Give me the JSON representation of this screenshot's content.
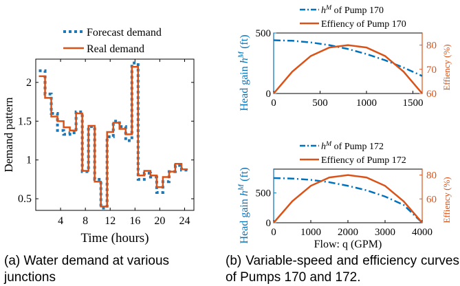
{
  "captions": {
    "a": "(a) Water demand at various junctions",
    "b": "(b) Variable-speed and efficiency curves of Pumps 170 and 172."
  },
  "colors": {
    "forecast": "#1f77b4",
    "real": "#d95319",
    "head": "#0072bd",
    "eff": "#d95319"
  },
  "chart_data": [
    {
      "type": "line",
      "xlabel": "Time (hours)",
      "ylabel": "Demand pattern",
      "xlim": [
        0,
        25.5
      ],
      "ylim": [
        0.35,
        2.3
      ],
      "xticks": [
        4,
        8,
        12,
        16,
        20,
        24
      ],
      "yticks": [
        0.5,
        1,
        1.5,
        2
      ],
      "legend_position": "top",
      "step": true,
      "series": [
        {
          "name": "Forecast demand",
          "style": "dotted-step",
          "color": "#1f77b4",
          "x": [
            1,
            2,
            3,
            4,
            5,
            6,
            7,
            8,
            9,
            10,
            11,
            12,
            13,
            14,
            15,
            16,
            17,
            18,
            19,
            20,
            21,
            22,
            23,
            24
          ],
          "values": [
            2.15,
            1.85,
            1.6,
            1.38,
            1.33,
            1.35,
            1.62,
            0.85,
            1.43,
            0.75,
            0.38,
            1.3,
            1.5,
            1.43,
            1.25,
            2.25,
            0.75,
            0.83,
            0.78,
            0.58,
            0.72,
            0.85,
            0.93,
            0.87
          ]
        },
        {
          "name": "Real demand",
          "style": "solid-step",
          "color": "#d95319",
          "x": [
            1,
            2,
            3,
            4,
            5,
            6,
            7,
            8,
            9,
            10,
            11,
            12,
            13,
            14,
            15,
            16,
            17,
            18,
            19,
            20,
            21,
            22,
            23,
            24
          ],
          "values": [
            2.08,
            1.8,
            1.56,
            1.5,
            1.42,
            1.38,
            1.6,
            0.86,
            1.44,
            0.72,
            0.4,
            1.36,
            1.48,
            1.4,
            1.33,
            2.2,
            0.8,
            0.86,
            0.8,
            0.65,
            0.78,
            0.85,
            0.95,
            0.88
          ]
        }
      ]
    },
    {
      "type": "line",
      "legend": [
        "h^M of Pump 170",
        "Effiency of Pump 170"
      ],
      "xlabel": "",
      "ylabel_left": "Head gain h^M (ft)",
      "ylabel_right": "Effiency (%)",
      "xlim": [
        0,
        1600
      ],
      "ylim_left": [
        0,
        500
      ],
      "ylim_right": [
        60,
        85
      ],
      "xticks": [
        0,
        500,
        1000,
        1500
      ],
      "yticks_left": [
        0,
        500
      ],
      "yticks_right": [
        60,
        70,
        80
      ],
      "series": [
        {
          "name": "h^M of Pump 170",
          "axis": "left",
          "style": "dashdot",
          "color": "#0072bd",
          "x": [
            0,
            200,
            400,
            600,
            800,
            1000,
            1200,
            1400,
            1600
          ],
          "values": [
            440,
            436,
            422,
            400,
            368,
            326,
            275,
            214,
            145
          ]
        },
        {
          "name": "Effiency of Pump 170",
          "axis": "right",
          "style": "solid",
          "color": "#d95319",
          "x": [
            0,
            200,
            400,
            600,
            800,
            1000,
            1200,
            1400,
            1600
          ],
          "values": [
            60,
            69,
            75.5,
            79,
            80,
            79,
            75.5,
            69,
            60
          ]
        }
      ]
    },
    {
      "type": "line",
      "legend": [
        "h^M of Pump 172",
        "Effiency of Pump 172"
      ],
      "xlabel": "Flow: q (GPM)",
      "ylabel_left": "Head gain h^M (ft)",
      "ylabel_right": "Effiency (%)",
      "xlim": [
        0,
        4000
      ],
      "ylim_left": [
        0,
        900
      ],
      "ylim_right": [
        40,
        85
      ],
      "xticks": [
        0,
        1000,
        2000,
        3000,
        4000
      ],
      "xtick_labels": [
        "0",
        "1000",
        "2000",
        "3000",
        "4000"
      ],
      "yticks_left": [
        0,
        500
      ],
      "yticks_right": [
        60,
        80
      ],
      "series": [
        {
          "name": "h^M of Pump 172",
          "axis": "left",
          "style": "dashdot",
          "color": "#0072bd",
          "x": [
            0,
            500,
            1000,
            1500,
            2000,
            2500,
            3000,
            3500,
            4000
          ],
          "values": [
            750,
            742,
            720,
            680,
            620,
            545,
            440,
            300,
            0
          ]
        },
        {
          "name": "Effiency of Pump 172",
          "axis": "right",
          "style": "solid",
          "color": "#d95319",
          "x": [
            0,
            500,
            1000,
            1500,
            2000,
            2500,
            3000,
            3500,
            4000
          ],
          "values": [
            40,
            58,
            71,
            78,
            80,
            78,
            71,
            58,
            40
          ]
        }
      ]
    }
  ]
}
